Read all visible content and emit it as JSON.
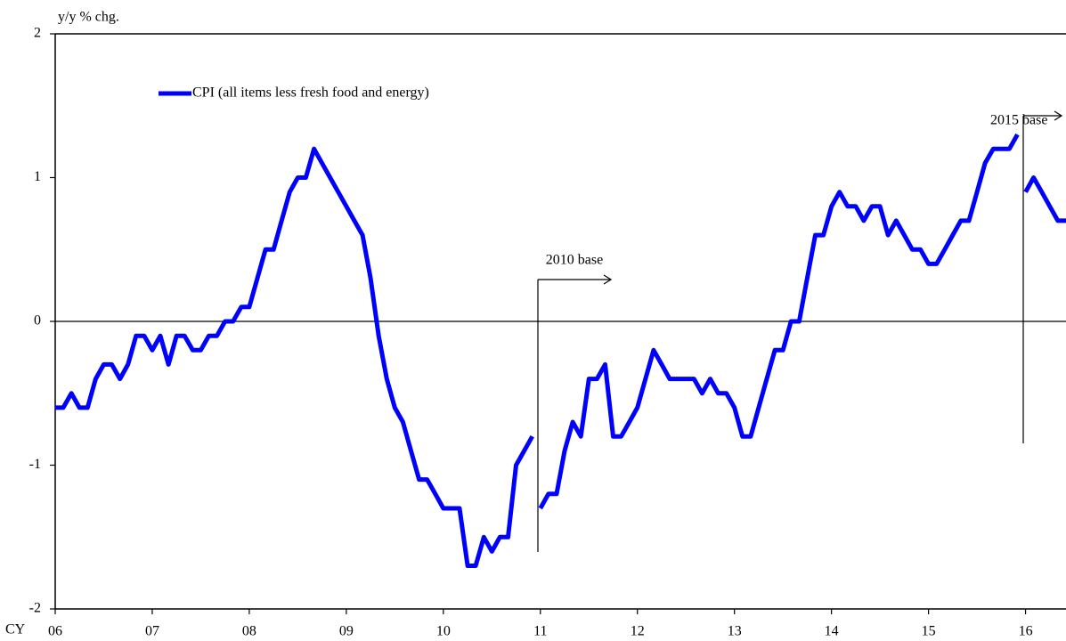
{
  "chart_data": {
    "type": "line",
    "y_label": "y/y  % chg.",
    "x_label": "CY",
    "legend": "upper left",
    "annotations": [
      "2010  base",
      "2015 base"
    ],
    "xlim": [
      2006,
      2016.417
    ],
    "xticks": [
      {
        "value": 2006,
        "label": "06"
      },
      {
        "value": 2007,
        "label": "07"
      },
      {
        "value": 2008,
        "label": "08"
      },
      {
        "value": 2009,
        "label": "09"
      },
      {
        "value": 2010,
        "label": "10"
      },
      {
        "value": 2011,
        "label": "11"
      },
      {
        "value": 2012,
        "label": "12"
      },
      {
        "value": 2013,
        "label": "13"
      },
      {
        "value": 2014,
        "label": "14"
      },
      {
        "value": 2015,
        "label": "15"
      },
      {
        "value": 2016,
        "label": "16"
      }
    ],
    "ylim": [
      -2,
      2
    ],
    "yticks": [
      -2,
      -1,
      0,
      1,
      2
    ],
    "x": [
      2006,
      2006.083,
      2006.167,
      2006.25,
      2006.333,
      2006.417,
      2006.5,
      2006.583,
      2006.667,
      2006.75,
      2006.833,
      2006.917,
      2007,
      2007.083,
      2007.167,
      2007.25,
      2007.333,
      2007.417,
      2007.5,
      2007.583,
      2007.667,
      2007.75,
      2007.833,
      2007.917,
      2008,
      2008.083,
      2008.167,
      2008.25,
      2008.333,
      2008.417,
      2008.5,
      2008.583,
      2008.667,
      2008.75,
      2008.833,
      2008.917,
      2009,
      2009.083,
      2009.167,
      2009.25,
      2009.333,
      2009.417,
      2009.5,
      2009.583,
      2009.667,
      2009.75,
      2009.833,
      2009.917,
      2010,
      2010.083,
      2010.167,
      2010.25,
      2010.333,
      2010.417,
      2010.5,
      2010.583,
      2010.667,
      2010.75,
      2010.833,
      2010.917,
      2011,
      2011,
      2011.083,
      2011.167,
      2011.25,
      2011.333,
      2011.417,
      2011.5,
      2011.583,
      2011.667,
      2011.75,
      2011.833,
      2011.917,
      2012,
      2012.083,
      2012.167,
      2012.25,
      2012.333,
      2012.417,
      2012.5,
      2012.583,
      2012.667,
      2012.75,
      2012.833,
      2012.917,
      2013,
      2013.083,
      2013.167,
      2013.25,
      2013.333,
      2013.417,
      2013.5,
      2013.583,
      2013.667,
      2013.75,
      2013.833,
      2013.917,
      2014,
      2014.083,
      2014.167,
      2014.25,
      2014.333,
      2014.417,
      2014.5,
      2014.583,
      2014.667,
      2014.75,
      2014.833,
      2014.917,
      2015,
      2015.083,
      2015.167,
      2015.25,
      2015.333,
      2015.417,
      2015.5,
      2015.583,
      2015.667,
      2015.75,
      2015.833,
      2015.917,
      2016,
      2016,
      2016.083,
      2016.167,
      2016.25,
      2016.333,
      2016.417
    ],
    "series": [
      {
        "name": "CPI (all items less fresh food and energy)",
        "color": "#0000ff",
        "values": [
          -0.6,
          -0.6,
          -0.5,
          -0.6,
          -0.6,
          -0.4,
          -0.3,
          -0.3,
          -0.4,
          -0.3,
          -0.1,
          -0.1,
          -0.2,
          -0.1,
          -0.3,
          -0.1,
          -0.1,
          -0.2,
          -0.2,
          -0.1,
          -0.1,
          0.0,
          0.0,
          0.1,
          0.1,
          0.3,
          0.5,
          0.5,
          0.7,
          0.9,
          1.0,
          1.0,
          1.2,
          1.1,
          1.0,
          0.9,
          0.8,
          0.7,
          0.6,
          0.3,
          -0.1,
          -0.4,
          -0.6,
          -0.7,
          -0.9,
          -1.1,
          -1.1,
          -1.2,
          -1.3,
          -1.3,
          -1.3,
          -1.7,
          -1.7,
          -1.5,
          -1.6,
          -1.5,
          -1.5,
          -1.0,
          -0.9,
          -0.8,
          null,
          -1.3,
          -1.2,
          -1.2,
          -0.9,
          -0.7,
          -0.8,
          -0.4,
          -0.4,
          -0.3,
          -0.8,
          -0.8,
          -0.7,
          -0.6,
          -0.4,
          -0.2,
          -0.3,
          -0.4,
          -0.4,
          -0.4,
          -0.4,
          -0.5,
          -0.4,
          -0.5,
          -0.5,
          -0.6,
          -0.8,
          -0.8,
          -0.6,
          -0.4,
          -0.2,
          -0.2,
          0.0,
          0.0,
          0.3,
          0.6,
          0.6,
          0.8,
          0.9,
          0.8,
          0.8,
          0.7,
          0.8,
          0.8,
          0.6,
          0.7,
          0.6,
          0.5,
          0.5,
          0.4,
          0.4,
          0.5,
          0.6,
          0.7,
          0.7,
          0.9,
          1.1,
          1.2,
          1.2,
          1.2,
          1.3,
          null,
          0.9,
          1.0,
          0.9,
          0.8,
          0.7,
          0.7
        ]
      }
    ]
  }
}
